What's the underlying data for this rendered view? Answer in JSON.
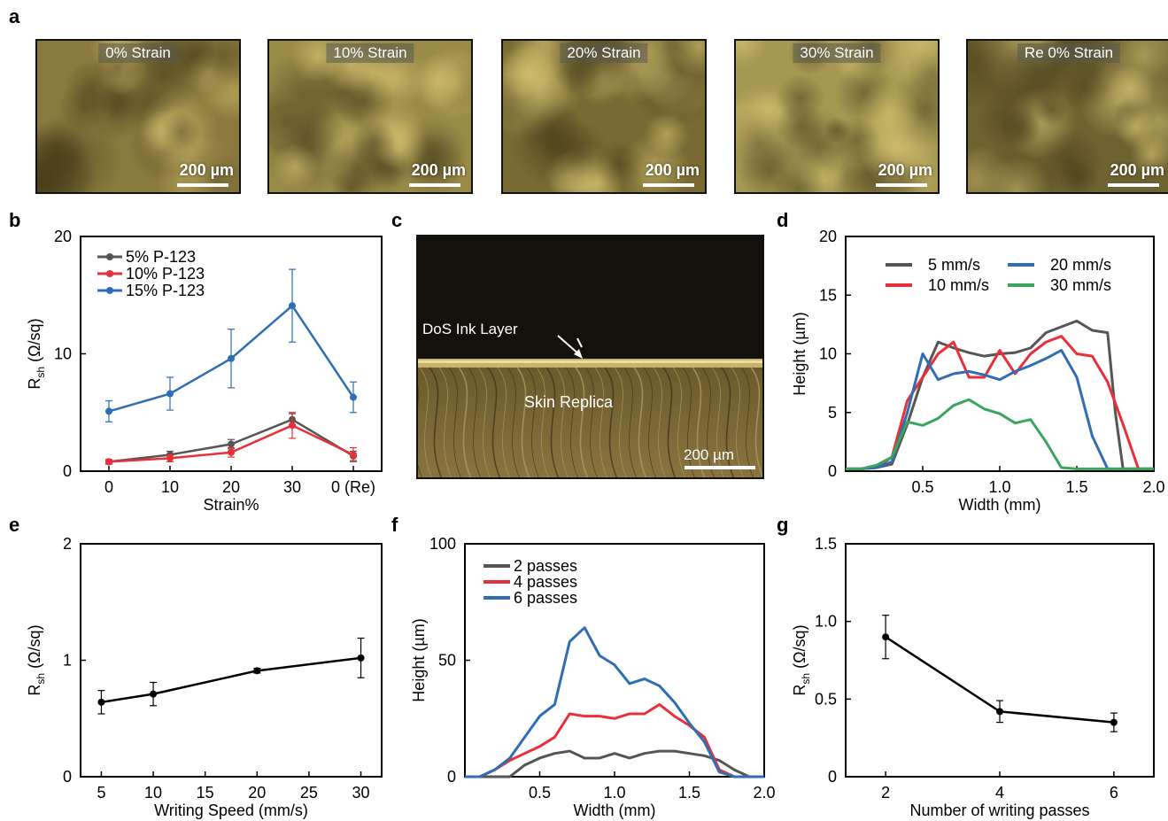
{
  "panel_letters": [
    "a",
    "b",
    "c",
    "d",
    "e",
    "f",
    "g"
  ],
  "micrographs": [
    {
      "label": "0% Strain",
      "scale": "200 µm"
    },
    {
      "label": "10% Strain",
      "scale": "200 µm"
    },
    {
      "label": "20% Strain",
      "scale": "200 µm"
    },
    {
      "label": "30% Strain",
      "scale": "200 µm"
    },
    {
      "label": "Re 0% Strain",
      "scale": "200 µm"
    }
  ],
  "cross_section": {
    "ink_label": "DoS Ink Layer",
    "replica_label": "Skin Replica",
    "scale": "200 µm"
  },
  "colors": {
    "gray": "#555555",
    "red": "#e8303a",
    "blue": "#2f6db5",
    "green": "#3aa55c",
    "black": "#000000"
  },
  "chart_data": [
    {
      "panel": "b",
      "type": "line",
      "categories": [
        "0",
        "10",
        "20",
        "30",
        "0 (Re)"
      ],
      "xlabel": "Strain%",
      "ylabel": "R",
      "ylabel_sub": "sh",
      "ylabel_unit": " (Ω/sq)",
      "ylim": [
        0,
        20
      ],
      "yticks": [
        0,
        10,
        20
      ],
      "legend": "top-left",
      "series": [
        {
          "name": "5% P-123",
          "color": "#555555",
          "values": [
            0.8,
            1.4,
            2.3,
            4.4,
            1.3
          ],
          "err": [
            0.2,
            0.3,
            0.4,
            0.5,
            0.4
          ]
        },
        {
          "name": "10% P-123",
          "color": "#e8303a",
          "values": [
            0.8,
            1.1,
            1.6,
            3.9,
            1.4
          ],
          "err": [
            0.2,
            0.3,
            0.4,
            1.1,
            0.6
          ]
        },
        {
          "name": "15% P-123",
          "color": "#2f6db5",
          "values": [
            5.1,
            6.6,
            9.6,
            14.1,
            6.3
          ],
          "err": [
            0.9,
            1.4,
            2.5,
            3.1,
            1.3
          ]
        }
      ]
    },
    {
      "panel": "d",
      "type": "line",
      "xlabel": "Width (mm)",
      "ylabel": "Height (µm)",
      "xlim": [
        0,
        2.0
      ],
      "ylim": [
        0,
        20
      ],
      "xticks": [
        0.5,
        1.0,
        1.5,
        2.0
      ],
      "xticklabels": [
        "0.5",
        "1.0",
        "1.5",
        "2.0"
      ],
      "yticks": [
        0,
        5,
        10,
        15,
        20
      ],
      "legend": "top-right",
      "series": [
        {
          "name": "5 mm/s",
          "color": "#555555",
          "x": [
            0,
            0.1,
            0.2,
            0.3,
            0.4,
            0.5,
            0.6,
            0.7,
            0.8,
            0.9,
            1.0,
            1.1,
            1.2,
            1.3,
            1.4,
            1.5,
            1.6,
            1.7,
            1.75,
            1.8,
            1.9,
            2.0
          ],
          "values": [
            0.2,
            0.2,
            0.3,
            0.6,
            4.0,
            8.0,
            11.0,
            10.5,
            10.1,
            9.8,
            10.0,
            10.1,
            10.5,
            11.8,
            12.3,
            12.8,
            12.0,
            11.8,
            5.0,
            0.2,
            0.2,
            0.2
          ]
        },
        {
          "name": "10 mm/s",
          "color": "#e8303a",
          "x": [
            0,
            0.1,
            0.2,
            0.3,
            0.4,
            0.5,
            0.6,
            0.7,
            0.8,
            0.9,
            1.0,
            1.1,
            1.2,
            1.3,
            1.4,
            1.5,
            1.6,
            1.7,
            1.8,
            1.9,
            2.0
          ],
          "values": [
            0.2,
            0.2,
            0.3,
            1.2,
            6.0,
            8.0,
            10.0,
            11.0,
            8.0,
            8.0,
            10.3,
            8.3,
            10.0,
            11.0,
            11.5,
            10.0,
            9.8,
            7.6,
            4.0,
            0.2,
            0.2
          ]
        },
        {
          "name": "20 mm/s",
          "color": "#2f6db5",
          "x": [
            0,
            0.1,
            0.2,
            0.3,
            0.4,
            0.5,
            0.6,
            0.7,
            0.8,
            0.9,
            1.0,
            1.1,
            1.2,
            1.3,
            1.4,
            1.5,
            1.6,
            1.7,
            1.8,
            1.9,
            2.0
          ],
          "values": [
            0.2,
            0.2,
            0.3,
            0.8,
            5.0,
            10.0,
            7.8,
            8.3,
            8.5,
            8.2,
            7.8,
            8.5,
            9.0,
            9.6,
            10.3,
            8.0,
            3.0,
            0.2,
            0.2,
            0.2,
            0.2
          ]
        },
        {
          "name": "30 mm/s",
          "color": "#3aa55c",
          "x": [
            0,
            0.1,
            0.2,
            0.3,
            0.4,
            0.5,
            0.6,
            0.7,
            0.8,
            0.9,
            1.0,
            1.1,
            1.2,
            1.3,
            1.4,
            1.5,
            1.6,
            1.7,
            1.8,
            1.9,
            2.0
          ],
          "values": [
            0.2,
            0.2,
            0.5,
            1.2,
            4.2,
            3.9,
            4.5,
            5.6,
            6.1,
            5.3,
            4.9,
            4.1,
            4.4,
            2.5,
            0.3,
            0.2,
            0.2,
            0.2,
            0.2,
            0.2,
            0.2
          ]
        }
      ]
    },
    {
      "panel": "e",
      "type": "line",
      "xlabel": "Writing Speed (mm/s)",
      "ylabel": "R",
      "ylabel_sub": "sh",
      "ylabel_unit": " (Ω/sq)",
      "xlim": [
        3,
        32
      ],
      "ylim": [
        0,
        2
      ],
      "xticks": [
        5,
        10,
        15,
        20,
        25,
        30
      ],
      "yticks": [
        0,
        1,
        2
      ],
      "series": [
        {
          "color": "#000000",
          "x": [
            5,
            10,
            20,
            30
          ],
          "values": [
            0.64,
            0.71,
            0.91,
            1.02
          ],
          "err": [
            0.1,
            0.1,
            0.02,
            0.17
          ]
        }
      ]
    },
    {
      "panel": "f",
      "type": "line",
      "xlabel": "Width (mm)",
      "ylabel": "Height (µm)",
      "xlim": [
        0,
        2.0
      ],
      "ylim": [
        0,
        100
      ],
      "xticks": [
        0.5,
        1.0,
        1.5,
        2.0
      ],
      "xticklabels": [
        "0.5",
        "1.0",
        "1.5",
        "2.0"
      ],
      "yticks": [
        0,
        50,
        100
      ],
      "legend": "top-left",
      "series": [
        {
          "name": "2 passes",
          "color": "#555555",
          "x": [
            0,
            0.1,
            0.2,
            0.3,
            0.4,
            0.5,
            0.6,
            0.7,
            0.8,
            0.9,
            1.0,
            1.1,
            1.2,
            1.3,
            1.4,
            1.5,
            1.6,
            1.7,
            1.8,
            1.9,
            2.0
          ],
          "values": [
            0,
            0,
            0,
            0,
            5,
            8,
            10,
            11,
            8,
            8,
            10,
            8,
            10,
            11,
            11,
            10,
            9,
            7,
            3,
            0,
            0
          ]
        },
        {
          "name": "4 passes",
          "color": "#e8303a",
          "x": [
            0,
            0.1,
            0.2,
            0.3,
            0.4,
            0.5,
            0.6,
            0.7,
            0.8,
            0.9,
            1.0,
            1.1,
            1.2,
            1.3,
            1.4,
            1.5,
            1.6,
            1.7,
            1.8,
            1.9,
            2.0
          ],
          "values": [
            0,
            0,
            3,
            7,
            10,
            13,
            17,
            27,
            26,
            26,
            25,
            27,
            27,
            31,
            26,
            22,
            17,
            3,
            0,
            0,
            0
          ]
        },
        {
          "name": "6 passes",
          "color": "#2f6db5",
          "x": [
            0,
            0.1,
            0.2,
            0.3,
            0.4,
            0.5,
            0.6,
            0.7,
            0.8,
            0.9,
            1.0,
            1.1,
            1.2,
            1.3,
            1.4,
            1.5,
            1.6,
            1.7,
            1.8,
            1.9,
            2.0
          ],
          "values": [
            0,
            0,
            3,
            8,
            17,
            26,
            31,
            58,
            64,
            52,
            48,
            40,
            42,
            39,
            32,
            23,
            15,
            2,
            0,
            0,
            0
          ]
        }
      ]
    },
    {
      "panel": "g",
      "type": "line",
      "xlabel": "Number of writing passes",
      "ylabel": "R",
      "ylabel_sub": "sh",
      "ylabel_unit": " (Ω/sq)",
      "xlim": [
        1.3,
        6.7
      ],
      "ylim": [
        0,
        1.5
      ],
      "xticks": [
        2,
        4,
        6
      ],
      "yticks": [
        0,
        0.5,
        1.0,
        1.5
      ],
      "yticklabels": [
        "0",
        "0.5",
        "1.0",
        "1.5"
      ],
      "series": [
        {
          "color": "#000000",
          "x": [
            2,
            4,
            6
          ],
          "values": [
            0.9,
            0.42,
            0.35
          ],
          "err": [
            0.14,
            0.07,
            0.06
          ]
        }
      ]
    }
  ]
}
